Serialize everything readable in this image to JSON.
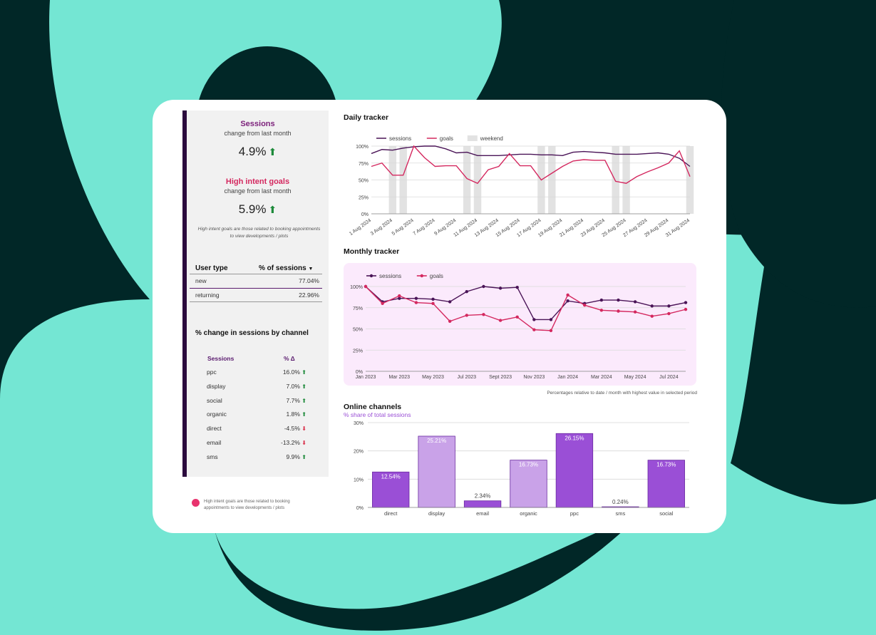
{
  "kpis": {
    "sessions": {
      "title": "Sessions",
      "subtitle": "change from last month",
      "value": "4.9%",
      "arrow": "up-arrow"
    },
    "goals": {
      "title": "High intent goals",
      "subtitle": "change from last month",
      "value": "5.9%",
      "arrow": "up-arrow"
    },
    "goals_note": "High intent goals are those related to booking appointments to view developments / plots"
  },
  "user_type": {
    "header_label": "User type",
    "header_value": "% of sessions",
    "sort_icon": "sort-down-icon",
    "rows": [
      {
        "label": "new",
        "value": "77.04%"
      },
      {
        "label": "returning",
        "value": "22.96%"
      }
    ]
  },
  "channels_table": {
    "title": "% change in sessions by channel",
    "col1": "Sessions",
    "col2": "% Δ",
    "rows": [
      {
        "label": "ppc",
        "value": "16.0%",
        "dir": "up"
      },
      {
        "label": "display",
        "value": "7.0%",
        "dir": "up"
      },
      {
        "label": "social",
        "value": "7.7%",
        "dir": "up"
      },
      {
        "label": "organic",
        "value": "1.8%",
        "dir": "up"
      },
      {
        "label": "direct",
        "value": "-4.5%",
        "dir": "down"
      },
      {
        "label": "email",
        "value": "-13.2%",
        "dir": "down"
      },
      {
        "label": "sms",
        "value": "9.9%",
        "dir": "up"
      }
    ]
  },
  "footer_note": "High intent goals are those related to booking appointments to view developments / plots",
  "relative_note": "Percentages relative to date / month with highest value in selected period",
  "colors": {
    "sessions": "#4a1457",
    "goals": "#d4285f",
    "weekend": "#e2e2e2",
    "bar_dark": "#9a4fd6",
    "bar_light": "#c9a2e8",
    "panel_pink": "#fbeafc",
    "accent_title": "#7b1f7a",
    "accent_goals": "#d4285f"
  },
  "chart_data": [
    {
      "type": "line",
      "title": "Daily tracker",
      "legend": [
        "sessions",
        "goals",
        "weekend"
      ],
      "x": [
        "1 Aug 2024",
        "2 Aug 2024",
        "3 Aug 2024",
        "4 Aug 2024",
        "5 Aug 2024",
        "6 Aug 2024",
        "7 Aug 2024",
        "8 Aug 2024",
        "9 Aug 2024",
        "10 Aug 2024",
        "11 Aug 2024",
        "12 Aug 2024",
        "13 Aug 2024",
        "14 Aug 2024",
        "15 Aug 2024",
        "16 Aug 2024",
        "17 Aug 2024",
        "18 Aug 2024",
        "19 Aug 2024",
        "20 Aug 2024",
        "21 Aug 2024",
        "22 Aug 2024",
        "23 Aug 2024",
        "24 Aug 2024",
        "25 Aug 2024",
        "26 Aug 2024",
        "27 Aug 2024",
        "28 Aug 2024",
        "29 Aug 2024",
        "30 Aug 2024",
        "31 Aug 2024"
      ],
      "x_tick_labels": [
        "1 Aug 2024",
        "3 Aug 2024",
        "5 Aug 2024",
        "7 Aug 2024",
        "9 Aug 2024",
        "11 Aug 2024",
        "13 Aug 2024",
        "15 Aug 2024",
        "17 Aug 2024",
        "19 Aug 2024",
        "21 Aug 2024",
        "23 Aug 2024",
        "25 Aug 2024",
        "27 Aug 2024",
        "29 Aug 2024",
        "31 Aug 2024"
      ],
      "weekend_days": [
        "3 Aug 2024",
        "4 Aug 2024",
        "10 Aug 2024",
        "11 Aug 2024",
        "17 Aug 2024",
        "18 Aug 2024",
        "24 Aug 2024",
        "25 Aug 2024",
        "31 Aug 2024"
      ],
      "series": [
        {
          "name": "sessions",
          "values": [
            89,
            95,
            94,
            97,
            99,
            100,
            100,
            96,
            90,
            91,
            86,
            86,
            86,
            87,
            88,
            88,
            87,
            87,
            86,
            91,
            92,
            91,
            90,
            88,
            88,
            88,
            89,
            90,
            88,
            82,
            70
          ]
        },
        {
          "name": "goals",
          "values": [
            70,
            75,
            57,
            57,
            100,
            83,
            70,
            71,
            71,
            52,
            45,
            65,
            70,
            89,
            71,
            71,
            50,
            60,
            70,
            78,
            80,
            79,
            79,
            48,
            45,
            55,
            62,
            68,
            75,
            93,
            55
          ]
        }
      ],
      "yticks": [
        "0%",
        "25%",
        "50%",
        "75%",
        "100%"
      ],
      "ylim": [
        0,
        100
      ]
    },
    {
      "type": "line",
      "title": "Monthly tracker",
      "legend": [
        "sessions",
        "goals"
      ],
      "x": [
        "Jan 2023",
        "Feb 2023",
        "Mar 2023",
        "Apr 2023",
        "May 2023",
        "Jun 2023",
        "Jul 2023",
        "Aug 2023",
        "Sept 2023",
        "Oct 2023",
        "Nov 2023",
        "Dec 2023",
        "Jan 2024",
        "Feb 2024",
        "Mar 2024",
        "Apr 2024",
        "May 2024",
        "Jun 2024",
        "Jul 2024",
        "Aug 2024"
      ],
      "x_tick_labels": [
        "Jan 2023",
        "Mar 2023",
        "May 2023",
        "Jul 2023",
        "Sept 2023",
        "Nov 2023",
        "Jan 2024",
        "Mar 2024",
        "May 2024",
        "Jul 2024"
      ],
      "series": [
        {
          "name": "sessions",
          "values": [
            100,
            82,
            86,
            86,
            85,
            82,
            94,
            100,
            98,
            99,
            61,
            61,
            83,
            80,
            84,
            84,
            82,
            77,
            77,
            81
          ]
        },
        {
          "name": "goals",
          "values": [
            100,
            80,
            89,
            81,
            80,
            59,
            66,
            67,
            60,
            64,
            49,
            48,
            90,
            78,
            72,
            71,
            70,
            65,
            68,
            73
          ]
        }
      ],
      "yticks": [
        "0%",
        "25%",
        "50%",
        "75%",
        "100%"
      ],
      "ylim": [
        0,
        100
      ]
    },
    {
      "type": "bar",
      "title": "Online channels",
      "subtitle": "% share of total sessions",
      "categories": [
        "direct",
        "display",
        "email",
        "organic",
        "ppc",
        "sms",
        "social"
      ],
      "values": [
        12.54,
        25.21,
        2.34,
        16.73,
        26.15,
        0.24,
        16.73
      ],
      "labels": [
        "12.54%",
        "25.21%",
        "2.34%",
        "16.73%",
        "26.15%",
        "0.24%",
        "16.73%"
      ],
      "yticks": [
        "0%",
        "10%",
        "20%",
        "30%"
      ],
      "ylim": [
        0,
        30
      ]
    }
  ]
}
